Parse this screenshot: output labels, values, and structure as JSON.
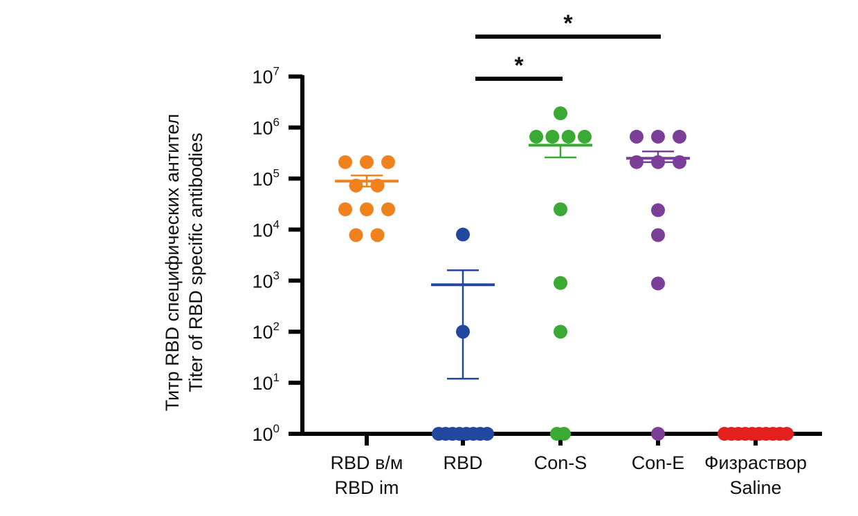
{
  "chart_data": {
    "type": "scatter",
    "title": "",
    "ylabel_lines": [
      "Титр RBD специфических антител",
      "Titer of RBD specific antibodies"
    ],
    "xlabel": "",
    "yscale": "log",
    "ylim": [
      1,
      10000000
    ],
    "yticks": [
      {
        "base": "10",
        "exp": "0"
      },
      {
        "base": "10",
        "exp": "1"
      },
      {
        "base": "10",
        "exp": "2"
      },
      {
        "base": "10",
        "exp": "3"
      },
      {
        "base": "10",
        "exp": "4"
      },
      {
        "base": "10",
        "exp": "5"
      },
      {
        "base": "10",
        "exp": "6"
      },
      {
        "base": "10",
        "exp": "7"
      }
    ],
    "grid": false,
    "series": [
      {
        "name": "RBD im",
        "label_lines": [
          "RBD в/м",
          "RBD im"
        ],
        "color": "#F0821E",
        "values": [
          210000,
          210000,
          210000,
          73000,
          73000,
          25000,
          25000,
          25000,
          7800,
          7800
        ],
        "mean": 89000,
        "sem_upper": 115000,
        "sem_lower": 70000
      },
      {
        "name": "RBD",
        "label_lines": [
          "RBD"
        ],
        "color": "#22479E",
        "values": [
          8000,
          100,
          1,
          1,
          1,
          1,
          1,
          1,
          1,
          1
        ],
        "mean": 830,
        "sem_upper": 1600,
        "sem_lower": 12
      },
      {
        "name": "Con-S",
        "label_lines": [
          "Con-S"
        ],
        "color": "#3AAA35",
        "values": [
          1900000,
          660000,
          660000,
          660000,
          660000,
          25000,
          900,
          100,
          1,
          1
        ],
        "mean": 450000,
        "sem_upper": 450000,
        "sem_lower": 260000
      },
      {
        "name": "Con-E",
        "label_lines": [
          "Con-E"
        ],
        "color": "#7B3F98",
        "values": [
          660000,
          660000,
          660000,
          210000,
          210000,
          210000,
          24000,
          7800,
          880,
          1
        ],
        "mean": 250000,
        "sem_upper": 340000,
        "sem_lower": 210000
      },
      {
        "name": "Saline",
        "label_lines": [
          "Физраствор",
          "Saline"
        ],
        "color": "#E4201F",
        "values": [
          1,
          1,
          1,
          1,
          1,
          1,
          1,
          1,
          1,
          1
        ],
        "mean": 1,
        "sem_upper": 1,
        "sem_lower": 1
      }
    ],
    "significance": [
      {
        "from": "RBD",
        "to": "Con-S",
        "label": "*"
      },
      {
        "from": "RBD",
        "to": "Con-E",
        "label": "*"
      }
    ]
  }
}
